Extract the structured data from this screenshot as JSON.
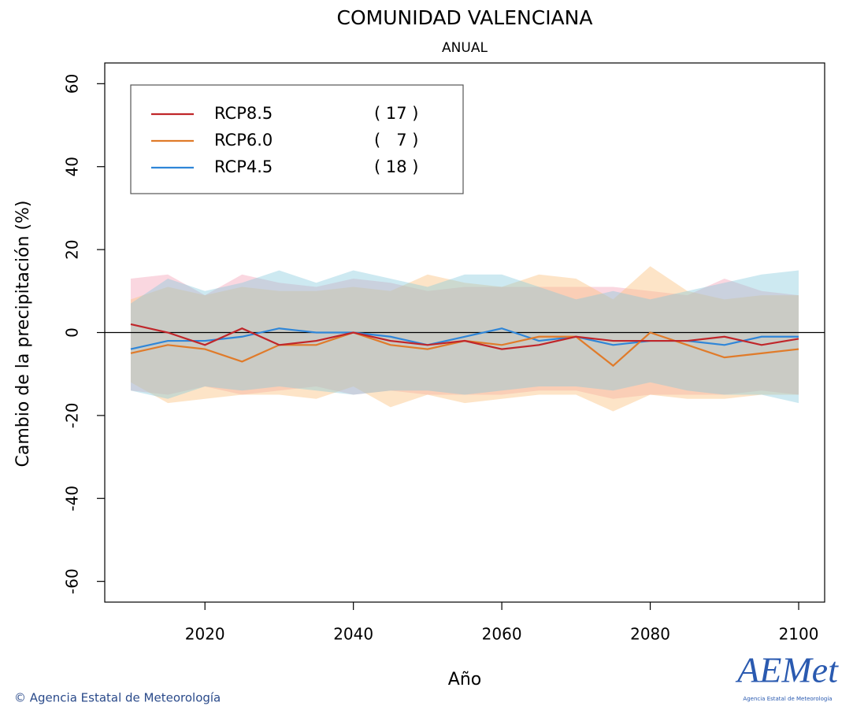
{
  "chart_data": {
    "type": "band-line",
    "title": "COMUNIDAD VALENCIANA",
    "subtitle": "ANUAL",
    "x_label": "Año",
    "y_label": "Cambio de la precipitación (%)",
    "x": [
      2010,
      2015,
      2020,
      2025,
      2030,
      2035,
      2040,
      2045,
      2050,
      2055,
      2060,
      2065,
      2070,
      2075,
      2080,
      2085,
      2090,
      2095,
      2100
    ],
    "series": [
      {
        "name": "RCP8.5",
        "count_label": "( 17 )",
        "color": "#c0262a",
        "band_color": "rgba(240,140,165,0.35)",
        "values": [
          2,
          0,
          -3,
          1,
          -3,
          -2,
          0,
          -2,
          -3,
          -2,
          -4,
          -3,
          -1,
          -2,
          -2,
          -2,
          -1,
          -3,
          -1.5
        ],
        "upper": [
          13,
          14,
          9,
          14,
          12,
          11,
          13,
          12,
          10,
          11,
          11,
          11,
          11,
          11,
          10,
          9,
          13,
          10,
          9
        ],
        "lower": [
          -14,
          -15,
          -13,
          -15,
          -14,
          -13,
          -15,
          -14,
          -15,
          -15,
          -15,
          -14,
          -14,
          -16,
          -15,
          -15,
          -15,
          -14,
          -15
        ]
      },
      {
        "name": "RCP6.0",
        "count_label": "(   7 )",
        "color": "#e07b2a",
        "band_color": "rgba(250,195,130,0.45)",
        "values": [
          -5,
          -3,
          -4,
          -7,
          -3,
          -3,
          0,
          -3,
          -4,
          -2,
          -3,
          -1,
          -1,
          -8,
          0,
          -3,
          -6,
          -5,
          -4
        ],
        "upper": [
          8,
          11,
          9,
          11,
          10,
          10,
          11,
          10,
          14,
          12,
          11,
          14,
          13,
          8,
          16,
          10,
          8,
          9,
          9
        ],
        "lower": [
          -12,
          -17,
          -16,
          -15,
          -15,
          -16,
          -13,
          -18,
          -15,
          -17,
          -16,
          -15,
          -15,
          -19,
          -15,
          -16,
          -16,
          -15,
          -15
        ]
      },
      {
        "name": "RCP4.5",
        "count_label": "( 18 )",
        "color": "#2f86d8",
        "band_color": "rgba(130,200,220,0.40)",
        "values": [
          -4,
          -2,
          -2,
          -1,
          1,
          0,
          0,
          -1,
          -3,
          -1,
          1,
          -2,
          -1,
          -3,
          -2,
          -2,
          -3,
          -1,
          -1
        ],
        "upper": [
          7,
          13,
          10,
          12,
          15,
          12,
          15,
          13,
          11,
          14,
          14,
          11,
          8,
          10,
          8,
          10,
          12,
          14,
          15
        ],
        "lower": [
          -14,
          -16,
          -13,
          -14,
          -13,
          -14,
          -15,
          -14,
          -14,
          -15,
          -14,
          -13,
          -13,
          -14,
          -12,
          -14,
          -15,
          -15,
          -17
        ]
      }
    ],
    "xlim": [
      2006.5,
      2103.5
    ],
    "ylim": [
      -65,
      65
    ],
    "xticks": [
      2020,
      2040,
      2060,
      2080,
      2100
    ],
    "yticks": [
      -60,
      -40,
      -20,
      0,
      20,
      40,
      60
    ],
    "hline": 0,
    "legend": "upper left",
    "credit": "© Agencia Estatal de Meteorología",
    "logo_text": "AEMet",
    "logo_subtitle": "Agencia Estatal de Meteorología"
  }
}
